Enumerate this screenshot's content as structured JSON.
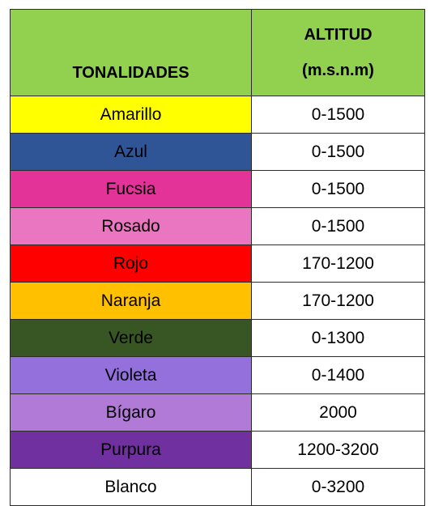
{
  "header": {
    "tonalidades": "TONALIDADES",
    "altitud_line1": "ALTITUD",
    "altitud_line2": "(m.s.n.m)"
  },
  "rows": [
    {
      "name": "Amarillo",
      "altitude": "0-1500",
      "color": "#ffff00"
    },
    {
      "name": "Azul",
      "altitude": "0-1500",
      "color": "#2f5597"
    },
    {
      "name": "Fucsia",
      "altitude": "0-1500",
      "color": "#e33399"
    },
    {
      "name": "Rosado",
      "altitude": "0-1500",
      "color": "#ea75c0"
    },
    {
      "name": "Rojo",
      "altitude": "170-1200",
      "color": "#ff0000"
    },
    {
      "name": "Naranja",
      "altitude": "170-1200",
      "color": "#ffc000"
    },
    {
      "name": "Verde",
      "altitude": "0-1300",
      "color": "#375623"
    },
    {
      "name": "Violeta",
      "altitude": "0-1400",
      "color": "#9370db"
    },
    {
      "name": "Bígaro",
      "altitude": "2000",
      "color": "#b07ad6"
    },
    {
      "name": "Purpura",
      "altitude": "1200-3200",
      "color": "#7030a0"
    },
    {
      "name": "Blanco",
      "altitude": "0-3200",
      "color": "#ffffff"
    }
  ],
  "colors": {
    "header_bg": "#92d050",
    "border": "#2b2b2b",
    "text": "#000000"
  }
}
